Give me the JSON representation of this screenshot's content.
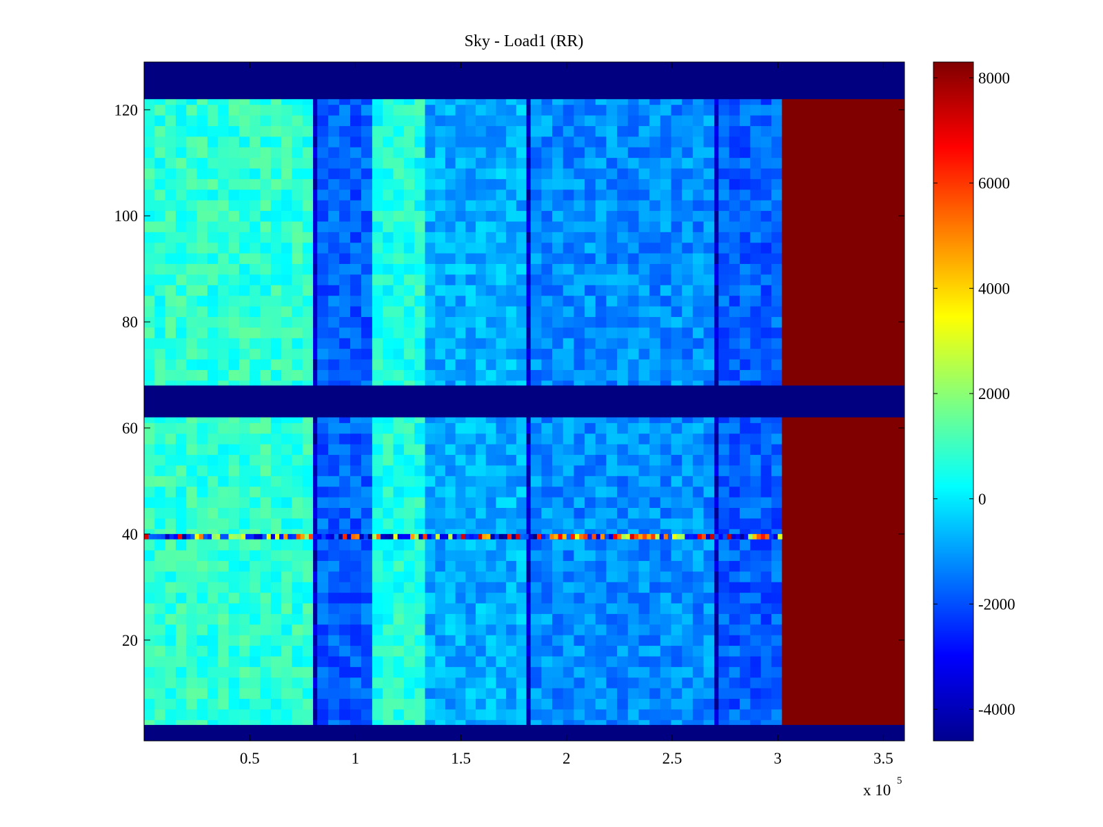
{
  "chart_data": {
    "type": "heatmap",
    "title": "Sky - Load1 (RR)",
    "xlabel": "",
    "ylabel": "",
    "x_multiplier": "x 10",
    "x_multiplier_exponent": "5",
    "xlim": [
      0,
      3.6
    ],
    "ylim": [
      1,
      129
    ],
    "x_ticks": [
      0.5,
      1,
      1.5,
      2,
      2.5,
      3,
      3.5
    ],
    "x_tick_labels": [
      "0.5",
      "1",
      "1.5",
      "2",
      "2.5",
      "3",
      "3.5"
    ],
    "y_ticks": [
      20,
      40,
      60,
      80,
      100,
      120
    ],
    "y_tick_labels": [
      "20",
      "40",
      "60",
      "80",
      "100",
      "120"
    ],
    "colormap": "jet",
    "color_range": [
      -4600,
      8300
    ],
    "colorbar_ticks": [
      8000,
      6000,
      4000,
      2000,
      0,
      -2000,
      -4000
    ],
    "colorbar_tick_labels": [
      "8000",
      "6000",
      "4000",
      "2000",
      "0",
      "-2000",
      "-4000"
    ],
    "row_blocks": [
      {
        "y_from": 1,
        "y_to": 4,
        "value": -4600,
        "description": "masked rows"
      },
      {
        "y_from": 62,
        "y_to": 68,
        "value": -4600,
        "description": "masked rows"
      },
      {
        "y_from": 122,
        "y_to": 129,
        "value": -4600,
        "description": "masked rows"
      }
    ],
    "column_bands": [
      {
        "x_from": 0.0,
        "x_to": 0.8,
        "value": 800
      },
      {
        "x_from": 0.8,
        "x_to": 0.82,
        "value": -3800
      },
      {
        "x_from": 0.82,
        "x_to": 1.08,
        "value": -1800
      },
      {
        "x_from": 1.08,
        "x_to": 1.33,
        "value": 600
      },
      {
        "x_from": 1.33,
        "x_to": 1.81,
        "value": -800
      },
      {
        "x_from": 1.81,
        "x_to": 1.83,
        "value": -3800
      },
      {
        "x_from": 1.83,
        "x_to": 2.7,
        "value": -1200
      },
      {
        "x_from": 2.7,
        "x_to": 2.72,
        "value": -3800
      },
      {
        "x_from": 2.72,
        "x_to": 3.02,
        "value": -1800
      },
      {
        "x_from": 3.02,
        "x_to": 3.6,
        "value": 8300
      }
    ],
    "anomalous_row": {
      "y": 39,
      "x_to": 3.02,
      "description": "noisy row with alternating high and low values"
    }
  }
}
